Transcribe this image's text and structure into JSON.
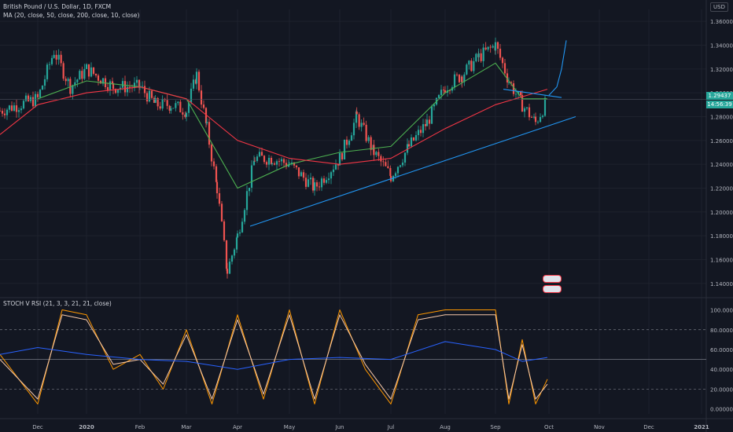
{
  "header": {
    "main_title": "British Pound / U.S. Dollar, 1D, FXCM",
    "ma_label": "MA (20, close, 50, close, 200, close, 10, close)",
    "osc_label": "STOCH V RSI (21, 3, 3, 21, 21, close)",
    "currency": "USD"
  },
  "badges": {
    "last_price": "1.29437",
    "countdown": "14:56:39"
  },
  "colors": {
    "background": "#131722",
    "up": "#26a69a",
    "down": "#ef5350",
    "ma_fast": "#4caf50",
    "ma_slow": "#f23645",
    "trendline": "#2196f3",
    "stoch_k": "#ff9800",
    "stoch_d": "#f7c8a8",
    "rsi": "#2962ff",
    "grid": "#1e222d",
    "axis_text": "#b2b5be"
  },
  "chart_data": [
    {
      "type": "candlestick",
      "title": "British Pound / U.S. Dollar, 1D, FXCM",
      "x": [
        "Dec",
        "2020",
        "Feb",
        "Mar",
        "Apr",
        "May",
        "Jun",
        "Jul",
        "Aug",
        "Sep",
        "Oct",
        "Nov",
        "Dec",
        "2021"
      ],
      "y_ticks": [
        "1.36000",
        "1.34000",
        "1.32000",
        "1.30000",
        "1.28000",
        "1.26000",
        "1.24000",
        "1.22000",
        "1.20000",
        "1.18000",
        "1.16000",
        "1.14000"
      ],
      "ylim": [
        1.13,
        1.37
      ],
      "grid": true,
      "close_path": [
        [
          "Nov",
          1.285
        ],
        [
          "Dec",
          1.295
        ],
        [
          "Dec",
          1.335
        ],
        [
          "Dec",
          1.305
        ],
        [
          "2020",
          1.32
        ],
        [
          "2020",
          1.305
        ],
        [
          "Feb",
          1.305
        ],
        [
          "Feb",
          1.29
        ],
        [
          "Feb",
          1.29
        ],
        [
          "Mar",
          1.285
        ],
        [
          "Mar",
          1.315
        ],
        [
          "Mar",
          1.27
        ],
        [
          "Mar",
          1.22
        ],
        [
          "Mar",
          1.15
        ],
        [
          "Apr",
          1.18
        ],
        [
          "Apr",
          1.245
        ],
        [
          "Apr",
          1.245
        ],
        [
          "May",
          1.24
        ],
        [
          "May",
          1.22
        ],
        [
          "Jun",
          1.245
        ],
        [
          "Jun",
          1.28
        ],
        [
          "Jun",
          1.25
        ],
        [
          "Jul",
          1.23
        ],
        [
          "Jul",
          1.255
        ],
        [
          "Jul",
          1.275
        ],
        [
          "Aug",
          1.305
        ],
        [
          "Aug",
          1.315
        ],
        [
          "Aug",
          1.33
        ],
        [
          "Sep",
          1.34
        ],
        [
          "Sep",
          1.31
        ],
        [
          "Sep",
          1.29
        ],
        [
          "Sep",
          1.275
        ],
        [
          "Oct",
          1.294
        ]
      ],
      "series": [
        {
          "name": "MA 20",
          "values": [
            [
              "Dec",
              1.295
            ],
            [
              "2020",
              1.31
            ],
            [
              "Feb",
              1.305
            ],
            [
              "Mar",
              1.295
            ],
            [
              "Apr",
              1.22
            ],
            [
              "May",
              1.24
            ],
            [
              "Jun",
              1.25
            ],
            [
              "Jul",
              1.255
            ],
            [
              "Aug",
              1.3
            ],
            [
              "Sep",
              1.325
            ],
            [
              "Sep",
              1.295
            ],
            [
              "Oct",
              1.295
            ]
          ]
        },
        {
          "name": "MA 50",
          "values": [
            [
              "Nov",
              1.265
            ],
            [
              "Dec",
              1.29
            ],
            [
              "2020",
              1.3
            ],
            [
              "Feb",
              1.305
            ],
            [
              "Mar",
              1.295
            ],
            [
              "Apr",
              1.26
            ],
            [
              "May",
              1.245
            ],
            [
              "Jun",
              1.24
            ],
            [
              "Jul",
              1.245
            ],
            [
              "Aug",
              1.27
            ],
            [
              "Sep",
              1.29
            ],
            [
              "Oct",
              1.303
            ]
          ]
        },
        {
          "name": "Trend line",
          "values": [
            [
              "Apr",
              1.188
            ],
            [
              "Oct",
              1.28
            ]
          ]
        },
        {
          "name": "Trend line",
          "values": [
            [
              "Sep",
              1.303
            ],
            [
              "Oct",
              1.296
            ]
          ]
        },
        {
          "name": "Projection",
          "values": [
            [
              "Oct",
              1.298
            ],
            [
              "Oct",
              1.305
            ],
            [
              "Oct",
              1.32
            ],
            [
              "Oct",
              1.344
            ]
          ]
        }
      ],
      "last_price": 1.29437
    },
    {
      "type": "line",
      "title": "STOCH V RSI (21, 3, 3, 21, 21, close)",
      "x": [
        "Dec",
        "2020",
        "Feb",
        "Mar",
        "Apr",
        "May",
        "Jun",
        "Jul",
        "Aug",
        "Sep",
        "Oct"
      ],
      "y_ticks": [
        "100.00000",
        "80.00000",
        "60.00000",
        "40.00000",
        "20.00000",
        "0.00000"
      ],
      "ylim": [
        -5,
        102
      ],
      "reference_lines": [
        80,
        50,
        20
      ],
      "series": [
        {
          "name": "%K",
          "values": [
            [
              "Nov",
              55
            ],
            [
              "Dec",
              5
            ],
            [
              "Dec",
              100
            ],
            [
              "2020",
              95
            ],
            [
              "2020",
              40
            ],
            [
              "Feb",
              55
            ],
            [
              "Feb",
              20
            ],
            [
              "Mar",
              80
            ],
            [
              "Mar",
              5
            ],
            [
              "Apr",
              95
            ],
            [
              "Apr",
              10
            ],
            [
              "May",
              100
            ],
            [
              "May",
              5
            ],
            [
              "Jun",
              100
            ],
            [
              "Jun",
              40
            ],
            [
              "Jul",
              5
            ],
            [
              "Jul",
              95
            ],
            [
              "Aug",
              100
            ],
            [
              "Aug",
              100
            ],
            [
              "Sep",
              100
            ],
            [
              "Sep",
              5
            ],
            [
              "Sep",
              70
            ],
            [
              "Sep",
              5
            ],
            [
              "Oct",
              30
            ]
          ]
        },
        {
          "name": "%D",
          "values": [
            [
              "Nov",
              50
            ],
            [
              "Dec",
              10
            ],
            [
              "Dec",
              95
            ],
            [
              "2020",
              90
            ],
            [
              "2020",
              45
            ],
            [
              "Feb",
              50
            ],
            [
              "Feb",
              25
            ],
            [
              "Mar",
              75
            ],
            [
              "Mar",
              10
            ],
            [
              "Apr",
              90
            ],
            [
              "Apr",
              15
            ],
            [
              "May",
              95
            ],
            [
              "May",
              10
            ],
            [
              "Jun",
              95
            ],
            [
              "Jun",
              45
            ],
            [
              "Jul",
              10
            ],
            [
              "Jul",
              90
            ],
            [
              "Aug",
              95
            ],
            [
              "Aug",
              95
            ],
            [
              "Sep",
              95
            ],
            [
              "Sep",
              10
            ],
            [
              "Sep",
              65
            ],
            [
              "Sep",
              10
            ],
            [
              "Oct",
              25
            ]
          ]
        },
        {
          "name": "RSI",
          "values": [
            [
              "Nov",
              55
            ],
            [
              "Dec",
              62
            ],
            [
              "2020",
              55
            ],
            [
              "Feb",
              50
            ],
            [
              "Mar",
              48
            ],
            [
              "Apr",
              40
            ],
            [
              "May",
              50
            ],
            [
              "Jun",
              52
            ],
            [
              "Jul",
              50
            ],
            [
              "Aug",
              68
            ],
            [
              "Sep",
              60
            ],
            [
              "Sep",
              48
            ],
            [
              "Oct",
              52
            ]
          ]
        }
      ]
    }
  ]
}
